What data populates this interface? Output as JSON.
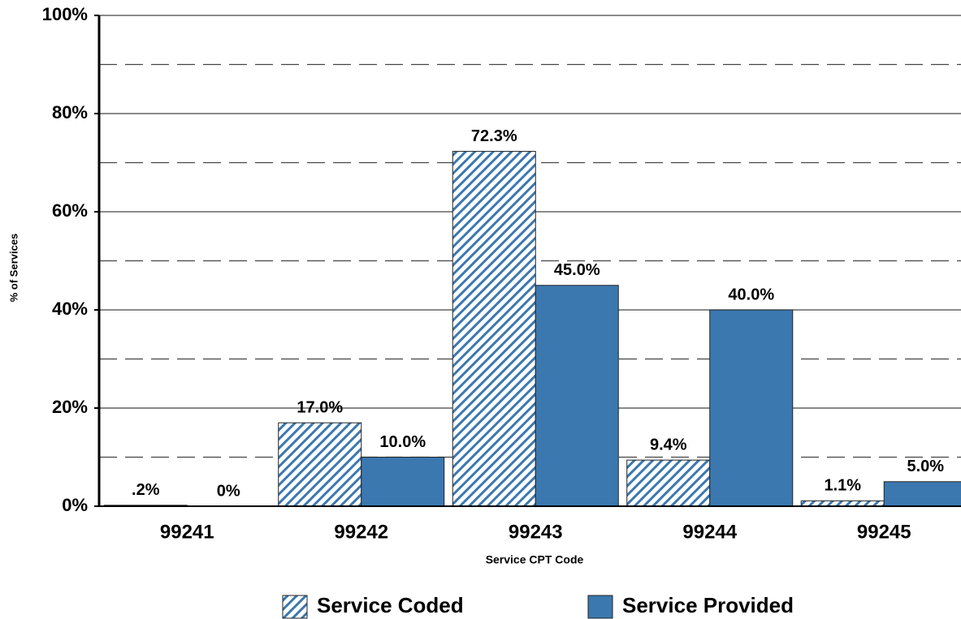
{
  "chart_data": {
    "type": "bar",
    "x_label": "Service CPT Code",
    "y_label": "% of Services",
    "categories": [
      "99241",
      "99242",
      "99243",
      "99244",
      "99245"
    ],
    "series": [
      {
        "name": "Service Coded",
        "color": "#3b78b0",
        "hatch": true,
        "values": [
          0.2,
          17.0,
          72.3,
          9.4,
          1.1
        ],
        "value_labels": [
          ".2%",
          "17.0%",
          "72.3%",
          "9.4%",
          "1.1%"
        ]
      },
      {
        "name": "Service Provided",
        "color": "#3b78b0",
        "hatch": false,
        "values": [
          0,
          10.0,
          45.0,
          40.0,
          5.0
        ],
        "value_labels": [
          "0%",
          "10.0%",
          "45.0%",
          "40.0%",
          "5.0%"
        ]
      }
    ],
    "ylim": [
      0,
      100
    ],
    "yticks": [
      {
        "value": 0,
        "label": "0%"
      },
      {
        "value": 20,
        "label": "20%"
      },
      {
        "value": 40,
        "label": "40%"
      },
      {
        "value": 60,
        "label": "60%"
      },
      {
        "value": 80,
        "label": "80%"
      },
      {
        "value": 100,
        "label": "100%"
      }
    ],
    "minor_yticks": [
      10,
      30,
      50,
      70,
      90
    ],
    "grid": true,
    "legend": "bottom"
  }
}
